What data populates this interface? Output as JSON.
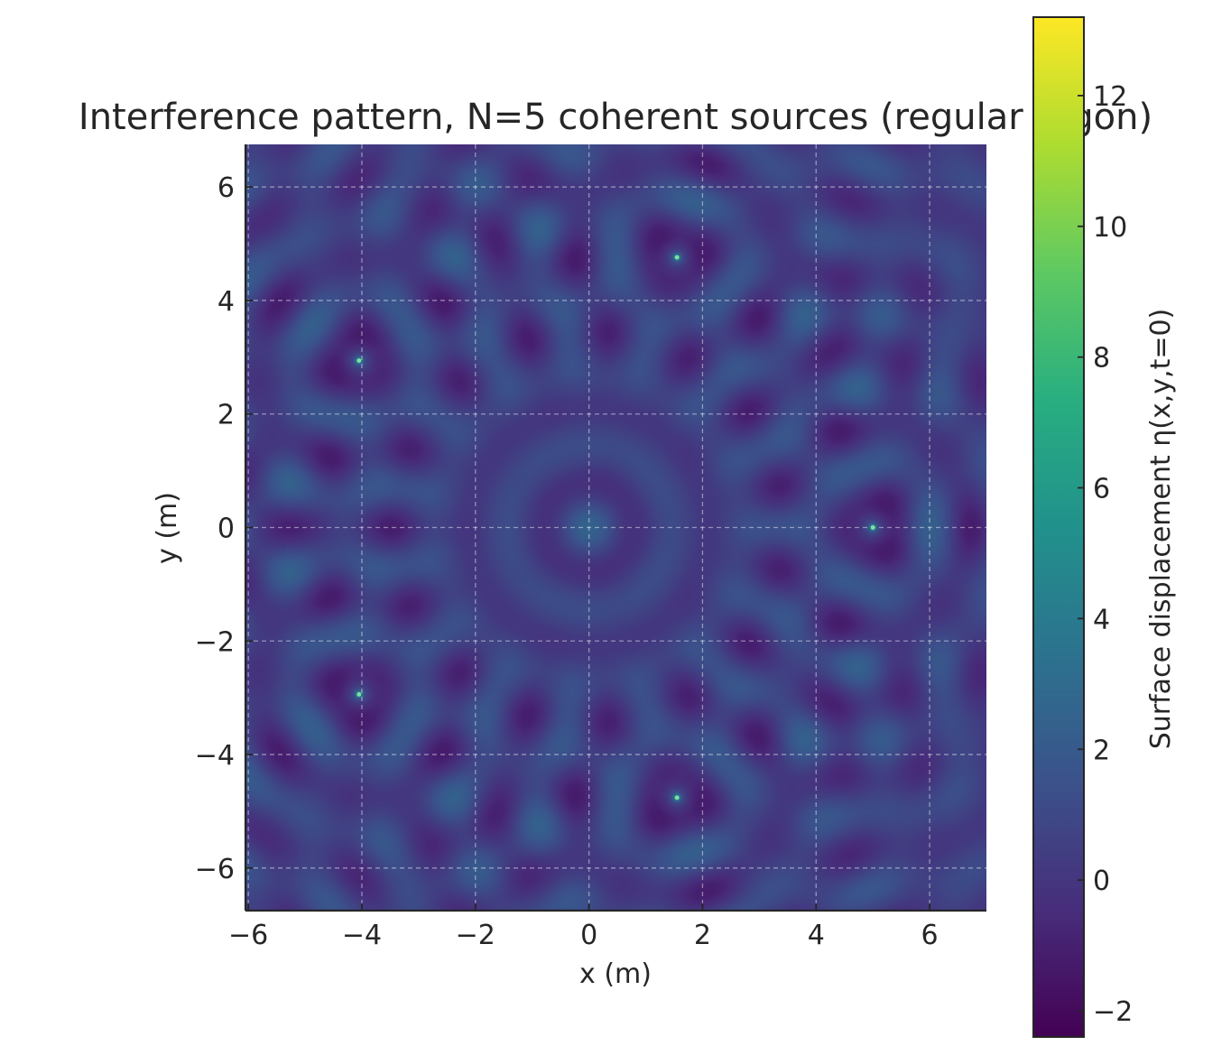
{
  "chart_data": {
    "type": "heatmap",
    "title": "Interference pattern, N=5 coherent sources (regular 5-gon)",
    "xlabel": "x (m)",
    "ylabel": "y (m)",
    "xlim": [
      -6.05,
      7.0
    ],
    "ylim": [
      -6.75,
      6.75
    ],
    "xticks": [
      {
        "value": -6,
        "label": "−6"
      },
      {
        "value": -4,
        "label": "−4"
      },
      {
        "value": -2,
        "label": "−2"
      },
      {
        "value": 0,
        "label": "0"
      },
      {
        "value": 2,
        "label": "2"
      },
      {
        "value": 4,
        "label": "4"
      },
      {
        "value": 6,
        "label": "6"
      }
    ],
    "yticks": [
      {
        "value": -6,
        "label": "−6"
      },
      {
        "value": -4,
        "label": "−4"
      },
      {
        "value": -2,
        "label": "−2"
      },
      {
        "value": 0,
        "label": "0"
      },
      {
        "value": 2,
        "label": "2"
      },
      {
        "value": 4,
        "label": "4"
      },
      {
        "value": 6,
        "label": "6"
      }
    ],
    "grid": true,
    "sources": [
      {
        "x": 5.0,
        "y": 0.0
      },
      {
        "x": 1.55,
        "y": 4.76
      },
      {
        "x": -4.05,
        "y": 2.94
      },
      {
        "x": -4.05,
        "y": -2.94
      },
      {
        "x": 1.55,
        "y": -4.76
      }
    ],
    "wavelength": 1.3,
    "colorbar": {
      "label": "Surface displacement η(x,y,t=0)",
      "colormap": "viridis",
      "range": [
        -2.4,
        13.2
      ],
      "ticks": [
        {
          "value": -2,
          "label": "−2"
        },
        {
          "value": 0,
          "label": "0"
        },
        {
          "value": 2,
          "label": "2"
        },
        {
          "value": 4,
          "label": "4"
        },
        {
          "value": 6,
          "label": "6"
        },
        {
          "value": 8,
          "label": "8"
        },
        {
          "value": 10,
          "label": "10"
        },
        {
          "value": 12,
          "label": "12"
        }
      ]
    }
  }
}
